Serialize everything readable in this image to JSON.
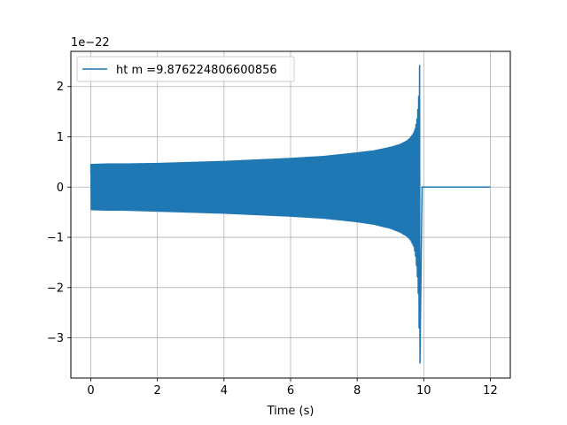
{
  "chart_data": {
    "type": "line",
    "title": "",
    "xlabel": "Time (s)",
    "ylabel": "",
    "y_offset_text": "1e−22",
    "xlim": [
      -0.6,
      12.6
    ],
    "ylim": [
      -3.8,
      2.7
    ],
    "xticks": [
      0,
      2,
      4,
      6,
      8,
      10,
      12
    ],
    "xtick_labels": [
      "0",
      "2",
      "4",
      "6",
      "8",
      "10",
      "12"
    ],
    "yticks": [
      -3,
      -2,
      -1,
      0,
      1,
      2
    ],
    "ytick_labels": [
      "−3",
      "−2",
      "−1",
      "0",
      "1",
      "2"
    ],
    "grid": true,
    "legend_position": "upper-left",
    "series": [
      {
        "name": "ht m =9.876224806600856",
        "color": "#1f77b4",
        "envelope_upper": {
          "t": [
            0.0,
            0.5,
            1,
            2,
            3,
            4,
            5,
            6,
            7,
            8,
            8.5,
            9.0,
            9.3,
            9.5,
            9.6,
            9.7,
            9.75,
            9.8,
            9.84,
            9.86,
            9.876
          ],
          "amp": [
            0.45,
            0.46,
            0.46,
            0.47,
            0.49,
            0.51,
            0.54,
            0.57,
            0.61,
            0.68,
            0.72,
            0.79,
            0.85,
            0.92,
            0.98,
            1.08,
            1.18,
            1.38,
            1.7,
            2.0,
            2.42
          ]
        },
        "envelope_lower": {
          "t": [
            0.0,
            0.5,
            1,
            2,
            3,
            4,
            5,
            6,
            7,
            8,
            8.5,
            9.0,
            9.3,
            9.5,
            9.6,
            9.7,
            9.75,
            9.8,
            9.84,
            9.86,
            9.876
          ],
          "amp": [
            -0.45,
            -0.46,
            -0.46,
            -0.48,
            -0.5,
            -0.52,
            -0.55,
            -0.58,
            -0.62,
            -0.69,
            -0.74,
            -0.82,
            -0.9,
            -0.98,
            -1.05,
            -1.18,
            -1.35,
            -1.7,
            -2.2,
            -2.8,
            -3.5
          ]
        },
        "ringdown_end": 9.95,
        "flat_segment": {
          "t_start": 9.95,
          "t_end": 12.0,
          "value": 0.0
        },
        "initial_spike": {
          "t": 0.0,
          "value": 0.3
        }
      }
    ]
  }
}
